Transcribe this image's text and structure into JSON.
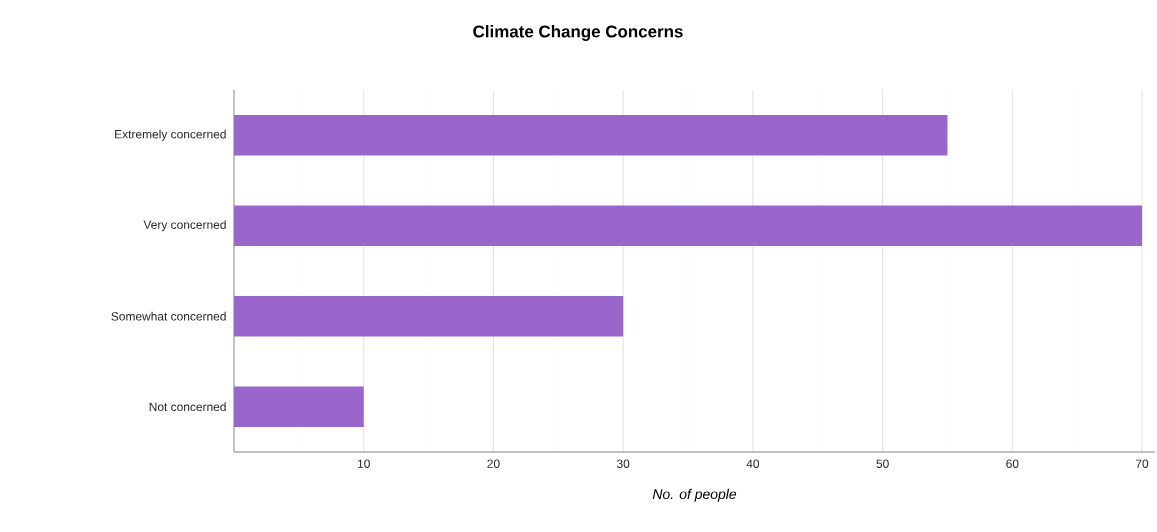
{
  "chart_data": {
    "type": "bar",
    "orientation": "horizontal",
    "title": "Climate Change Concerns",
    "xlabel": "No. of people",
    "categories": [
      "Extremely concerned",
      "Very concerned",
      "Somewhat concerned",
      "Not concerned"
    ],
    "values": [
      55,
      70,
      30,
      10
    ],
    "color": "#9966cc",
    "xlim": [
      0,
      71
    ],
    "xticks": [
      {
        "value": 5,
        "label": null
      },
      10,
      {
        "value": 15,
        "label": null
      },
      20,
      {
        "value": 25,
        "label": null
      },
      30,
      {
        "value": 35,
        "label": null
      },
      40,
      {
        "value": 45,
        "label": null
      },
      50,
      {
        "value": 55,
        "label": null
      },
      60,
      {
        "value": 65,
        "label": null
      },
      70
    ],
    "grid": "x"
  }
}
